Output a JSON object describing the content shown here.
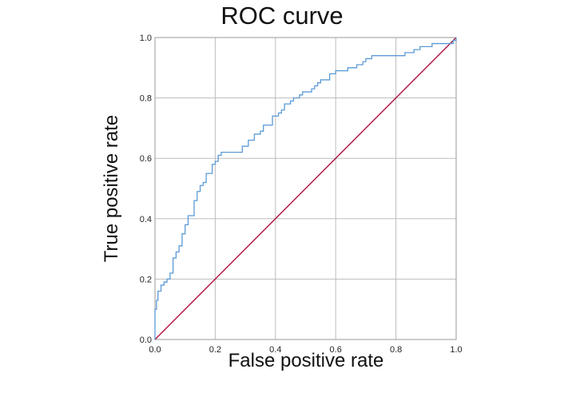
{
  "chart_data": {
    "type": "line",
    "title": "ROC curve",
    "xlabel": "False positive rate",
    "ylabel": "True positive rate",
    "xlim": [
      0,
      1
    ],
    "ylim": [
      0,
      1
    ],
    "grid": true,
    "xticks": [
      "0.0",
      "0.2",
      "0.4",
      "0.6",
      "0.8",
      "1.0"
    ],
    "yticks": [
      "0.0",
      "0.2",
      "0.4",
      "0.6",
      "0.8",
      "1.0"
    ],
    "colors": {
      "roc": "#5b9bd5",
      "diagonal": "#b0103a",
      "grid": "#bdbdbd",
      "frame": "#999999"
    },
    "series": [
      {
        "x": [
          0.0,
          0.0,
          0.005,
          0.005,
          0.01,
          0.01,
          0.02,
          0.02,
          0.03,
          0.03,
          0.04,
          0.05,
          0.05,
          0.06,
          0.06,
          0.07,
          0.07,
          0.08,
          0.09,
          0.09,
          0.1,
          0.1,
          0.11,
          0.11,
          0.12,
          0.13,
          0.13,
          0.14,
          0.14,
          0.15,
          0.15,
          0.16,
          0.17,
          0.17,
          0.18,
          0.19,
          0.19,
          0.2,
          0.21,
          0.21,
          0.22,
          0.22,
          0.24,
          0.27,
          0.29,
          0.29,
          0.31,
          0.31,
          0.33,
          0.33,
          0.35,
          0.36,
          0.36,
          0.38,
          0.39,
          0.39,
          0.41,
          0.42,
          0.43,
          0.43,
          0.45,
          0.46,
          0.48,
          0.49,
          0.5,
          0.52,
          0.53,
          0.54,
          0.55,
          0.56,
          0.58,
          0.58,
          0.6,
          0.62,
          0.64,
          0.65,
          0.67,
          0.69,
          0.7,
          0.72,
          0.75,
          0.8,
          0.83,
          0.85,
          0.86,
          0.88,
          0.9,
          0.92,
          0.95,
          0.97,
          0.99,
          1.0
        ],
        "y": [
          0.0,
          0.1,
          0.1,
          0.13,
          0.13,
          0.16,
          0.16,
          0.18,
          0.18,
          0.19,
          0.2,
          0.2,
          0.22,
          0.24,
          0.27,
          0.27,
          0.29,
          0.31,
          0.33,
          0.35,
          0.36,
          0.38,
          0.39,
          0.41,
          0.41,
          0.44,
          0.46,
          0.47,
          0.49,
          0.5,
          0.51,
          0.52,
          0.53,
          0.55,
          0.55,
          0.56,
          0.58,
          0.59,
          0.59,
          0.61,
          0.61,
          0.62,
          0.62,
          0.62,
          0.63,
          0.64,
          0.65,
          0.66,
          0.66,
          0.68,
          0.69,
          0.69,
          0.71,
          0.71,
          0.72,
          0.74,
          0.75,
          0.76,
          0.77,
          0.78,
          0.79,
          0.8,
          0.81,
          0.82,
          0.82,
          0.83,
          0.84,
          0.85,
          0.86,
          0.86,
          0.87,
          0.88,
          0.89,
          0.89,
          0.9,
          0.9,
          0.91,
          0.92,
          0.93,
          0.94,
          0.94,
          0.94,
          0.95,
          0.95,
          0.96,
          0.97,
          0.97,
          0.98,
          0.98,
          0.98,
          0.99,
          1.0
        ]
      },
      {
        "x": [
          0,
          1
        ],
        "y": [
          0,
          1
        ]
      }
    ]
  }
}
